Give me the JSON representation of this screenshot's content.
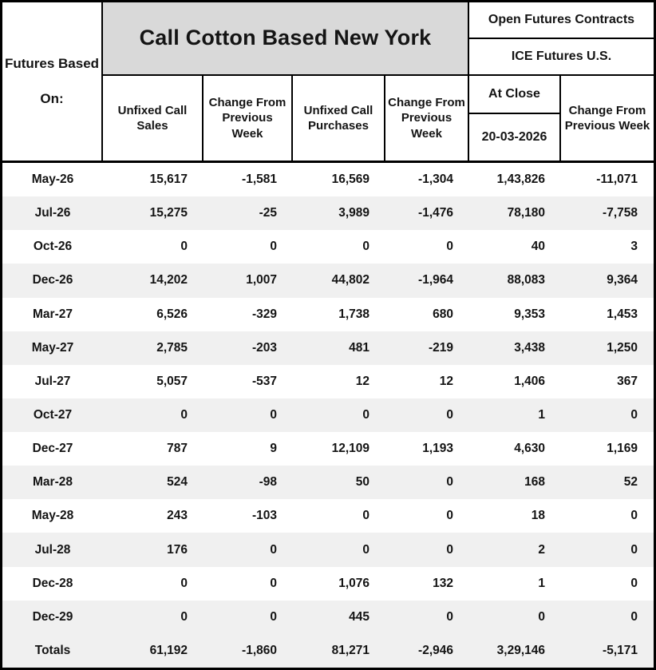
{
  "table": {
    "corner": {
      "line1": "Futures Based",
      "line2": "On:"
    },
    "title": "Call Cotton Based New York",
    "right_header": {
      "line1": "Open Futures Contracts",
      "line2": "ICE Futures U.S."
    },
    "columns": {
      "unfixed_call_sales": "Unfixed Call Sales",
      "change_prev_week_1": "Change From Previous Week",
      "unfixed_call_purchases": "Unfixed Call Purchases",
      "change_prev_week_2": "Change From Previous Week",
      "at_close": "At Close",
      "at_close_date": "20-03-2026",
      "change_prev_week_3": "Change From Previous Week"
    },
    "rows": [
      {
        "month": "May-26",
        "values": [
          "15,617",
          "-1,581",
          "16,569",
          "-1,304",
          "1,43,826",
          "-11,071"
        ]
      },
      {
        "month": "Jul-26",
        "values": [
          "15,275",
          "-25",
          "3,989",
          "-1,476",
          "78,180",
          "-7,758"
        ]
      },
      {
        "month": "Oct-26",
        "values": [
          "0",
          "0",
          "0",
          "0",
          "40",
          "3"
        ]
      },
      {
        "month": "Dec-26",
        "values": [
          "14,202",
          "1,007",
          "44,802",
          "-1,964",
          "88,083",
          "9,364"
        ]
      },
      {
        "month": "Mar-27",
        "values": [
          "6,526",
          "-329",
          "1,738",
          "680",
          "9,353",
          "1,453"
        ]
      },
      {
        "month": "May-27",
        "values": [
          "2,785",
          "-203",
          "481",
          "-219",
          "3,438",
          "1,250"
        ]
      },
      {
        "month": "Jul-27",
        "values": [
          "5,057",
          "-537",
          "12",
          "12",
          "1,406",
          "367"
        ]
      },
      {
        "month": "Oct-27",
        "values": [
          "0",
          "0",
          "0",
          "0",
          "1",
          "0"
        ]
      },
      {
        "month": "Dec-27",
        "values": [
          "787",
          "9",
          "12,109",
          "1,193",
          "4,630",
          "1,169"
        ]
      },
      {
        "month": "Mar-28",
        "values": [
          "524",
          "-98",
          "50",
          "0",
          "168",
          "52"
        ]
      },
      {
        "month": "May-28",
        "values": [
          "243",
          "-103",
          "0",
          "0",
          "18",
          "0"
        ]
      },
      {
        "month": "Jul-28",
        "values": [
          "176",
          "0",
          "0",
          "0",
          "2",
          "0"
        ]
      },
      {
        "month": "Dec-28",
        "values": [
          "0",
          "0",
          "1,076",
          "132",
          "1",
          "0"
        ]
      },
      {
        "month": "Dec-29",
        "values": [
          "0",
          "0",
          "445",
          "0",
          "0",
          "0"
        ]
      },
      {
        "month": "Totals",
        "values": [
          "61,192",
          "-1,860",
          "81,271",
          "-2,946",
          "3,29,146",
          "-5,171"
        ]
      }
    ]
  },
  "colors": {
    "title_band": "#d9d9d9",
    "row_stripe": "#f0f0f0",
    "border": "#000000",
    "text": "#141414"
  }
}
